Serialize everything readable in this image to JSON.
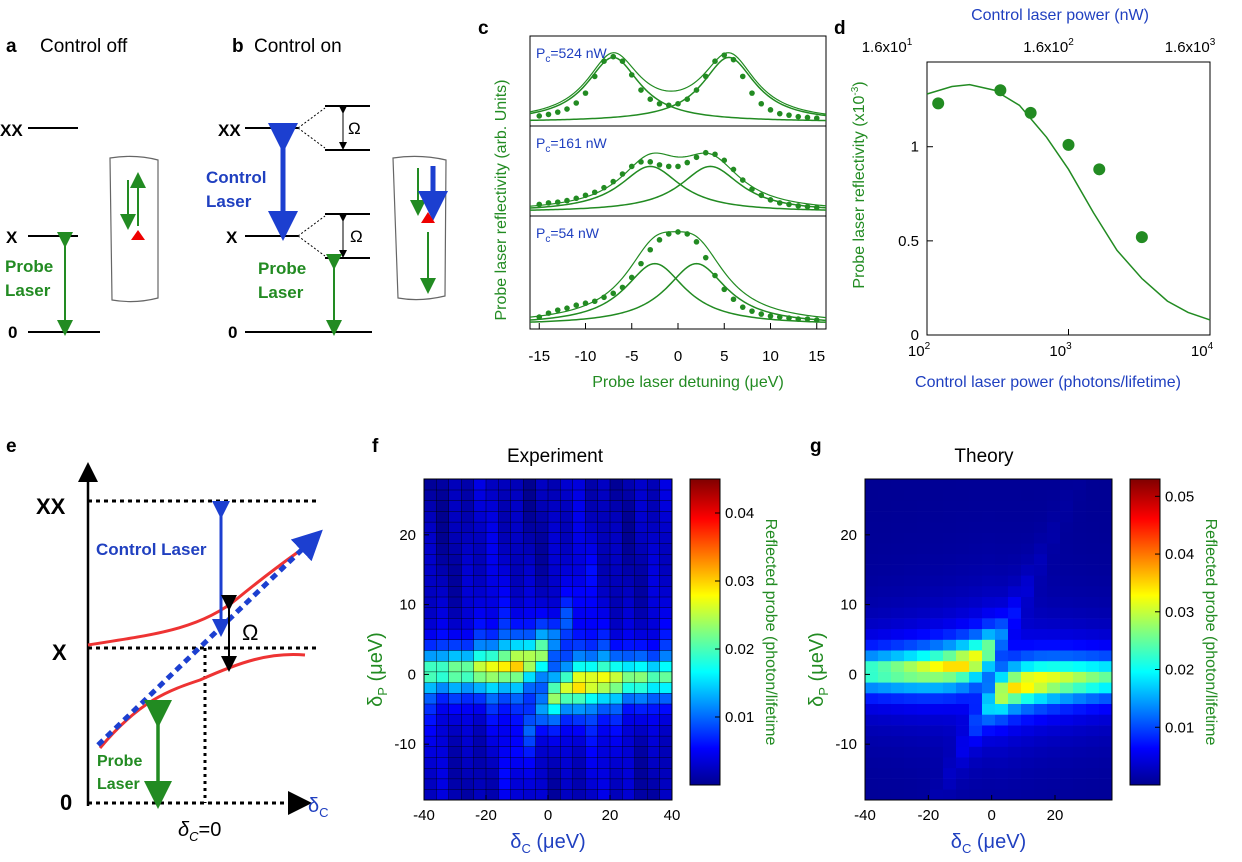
{
  "panels": {
    "a": {
      "letter": "a",
      "title": "Control off",
      "levels": [
        "XX",
        "X",
        "0"
      ],
      "probe": [
        "Probe",
        "Laser"
      ]
    },
    "b": {
      "letter": "b",
      "title": "Control on",
      "levels": [
        "XX",
        "X",
        "0"
      ],
      "control": [
        "Control",
        "Laser"
      ],
      "probe": [
        "Probe",
        "Laser"
      ],
      "omega": "Ω"
    },
    "e": {
      "letter": "e",
      "levels": [
        "XX",
        "X",
        "0"
      ],
      "control": "Control Laser",
      "probe": [
        "Probe",
        "Laser"
      ],
      "omega": "Ω",
      "xaxis": "δ",
      "xsub": "C",
      "dc0": "δ",
      "dc0sub": "C",
      "dc0tail": "=0"
    },
    "f": {
      "letter": "f",
      "title": "Experiment"
    },
    "g": {
      "letter": "g",
      "title": "Theory"
    }
  },
  "chart_data": [
    {
      "id": "c",
      "type": "line",
      "letter": "c",
      "xlabel": "Probe laser detuning (μeV)",
      "ylabel": "Probe laser reflectivity (arb. Units)",
      "xlim": [
        -16,
        16
      ],
      "xticks": [
        "-15",
        "-10",
        "-5",
        "0",
        "5",
        "10",
        "15"
      ],
      "subplots": [
        {
          "label_main": "P",
          "label_sub": "c",
          "label_rest": "=524 nW",
          "peaks": [
            -7,
            5.5
          ],
          "amp": 0.85,
          "gamma": 3.5,
          "points": {
            "x": [
              -15,
              -14,
              -13,
              -12,
              -11,
              -10,
              -9,
              -8,
              -7,
              -6,
              -5,
              -4,
              -3,
              -2,
              -1,
              0,
              1,
              2,
              3,
              4,
              5,
              6,
              7,
              8,
              9,
              10,
              11,
              12,
              13,
              14,
              15
            ],
            "y": [
              0.08,
              0.1,
              0.13,
              0.17,
              0.25,
              0.38,
              0.6,
              0.8,
              0.86,
              0.8,
              0.62,
              0.42,
              0.3,
              0.24,
              0.22,
              0.24,
              0.3,
              0.42,
              0.6,
              0.8,
              0.88,
              0.82,
              0.6,
              0.38,
              0.24,
              0.16,
              0.11,
              0.09,
              0.07,
              0.06,
              0.05
            ]
          }
        },
        {
          "label_main": "P",
          "label_sub": "c",
          "label_rest": "=161 nW",
          "peaks": [
            -3,
            3.5
          ],
          "amp": 0.6,
          "gamma": 4,
          "points": {
            "x": [
              -15,
              -14,
              -13,
              -12,
              -11,
              -10,
              -9,
              -8,
              -7,
              -6,
              -5,
              -4,
              -3,
              -2,
              -1,
              0,
              1,
              2,
              3,
              4,
              5,
              6,
              7,
              8,
              9,
              10,
              11,
              12,
              13,
              14,
              15
            ],
            "y": [
              0.1,
              0.12,
              0.13,
              0.15,
              0.18,
              0.22,
              0.26,
              0.32,
              0.4,
              0.5,
              0.6,
              0.66,
              0.66,
              0.62,
              0.6,
              0.6,
              0.65,
              0.72,
              0.78,
              0.76,
              0.68,
              0.56,
              0.42,
              0.3,
              0.22,
              0.16,
              0.12,
              0.1,
              0.08,
              0.07,
              0.06
            ]
          }
        },
        {
          "label_main": "P",
          "label_sub": "c",
          "label_rest": "=54 nW",
          "peaks": [
            -2.5,
            2
          ],
          "amp": 0.62,
          "gamma": 4,
          "points": {
            "x": [
              -15,
              -14,
              -13,
              -12,
              -11,
              -10,
              -9,
              -8,
              -7,
              -6,
              -5,
              -4,
              -3,
              -2,
              -1,
              0,
              1,
              2,
              3,
              4,
              5,
              6,
              7,
              8,
              9,
              10,
              11,
              12,
              13,
              14,
              15
            ],
            "y": [
              0.08,
              0.12,
              0.15,
              0.17,
              0.2,
              0.22,
              0.24,
              0.28,
              0.32,
              0.38,
              0.48,
              0.62,
              0.76,
              0.86,
              0.92,
              0.94,
              0.92,
              0.84,
              0.68,
              0.5,
              0.36,
              0.26,
              0.18,
              0.14,
              0.11,
              0.09,
              0.08,
              0.07,
              0.06,
              0.06,
              0.05
            ]
          }
        }
      ]
    },
    {
      "id": "d",
      "type": "scatter",
      "letter": "d",
      "xlabel": "Control laser power (photons/lifetime)",
      "xlabel_top": "Control laser power (nW)",
      "ylabel": "Probe laser reflectivity (x10",
      "ylabel_sup": "-3",
      "ylabel_tail": ")",
      "xscale": "log",
      "xlim": [
        100,
        10000
      ],
      "ylim": [
        0,
        1.45
      ],
      "xticks": [
        {
          "base": "10",
          "exp": "2"
        },
        {
          "base": "10",
          "exp": "3"
        },
        {
          "base": "10",
          "exp": "4"
        }
      ],
      "xticks_top": [
        {
          "base": "1.6x10",
          "exp": "1"
        },
        {
          "base": "1.6x10",
          "exp": "2"
        },
        {
          "base": "1.6x10",
          "exp": "3"
        }
      ],
      "yticks": [
        "0",
        "0.5",
        "1"
      ],
      "points": {
        "x": [
          120,
          330,
          540,
          1000,
          1650,
          3300
        ],
        "y": [
          1.23,
          1.3,
          1.18,
          1.01,
          0.88,
          0.52
        ]
      },
      "curve": {
        "x": [
          100,
          150,
          200,
          300,
          450,
          700,
          1000,
          1500,
          2200,
          3300,
          5000,
          7000,
          10000
        ],
        "y": [
          1.28,
          1.32,
          1.33,
          1.3,
          1.22,
          1.05,
          0.88,
          0.65,
          0.45,
          0.3,
          0.18,
          0.12,
          0.08
        ]
      }
    },
    {
      "id": "f",
      "type": "heatmap",
      "xlabel_main": "δ",
      "xlabel_sub": "C",
      "xlabel_unit": " (μeV)",
      "ylabel_main": "δ",
      "ylabel_sub": "P",
      "ylabel_unit": " (μeV)",
      "xlim": [
        -40,
        40
      ],
      "ylim": [
        -18,
        28
      ],
      "xticks": [
        "-40",
        "-20",
        "0",
        "20",
        "40"
      ],
      "yticks": [
        "-10",
        "0",
        "10",
        "20"
      ],
      "colorbar_label": "Reflected probe (photon/lifetime",
      "colorbar_ticks": [
        "0.01",
        "0.02",
        "0.03",
        "0.04"
      ],
      "vmax": 0.045,
      "grid": true
    },
    {
      "id": "g",
      "type": "heatmap",
      "xlabel_main": "δ",
      "xlabel_sub": "C",
      "xlabel_unit": " (μeV)",
      "ylabel_main": "δ",
      "ylabel_sub": "P",
      "ylabel_unit": " (μeV)",
      "xlim": [
        -40,
        38
      ],
      "ylim": [
        -18,
        28
      ],
      "xticks": [
        "-40",
        "-20",
        "0",
        "20"
      ],
      "yticks": [
        "-10",
        "0",
        "10",
        "20"
      ],
      "colorbar_label": "Reflected probe (photon/lifetime",
      "colorbar_ticks": [
        "0.01",
        "0.02",
        "0.03",
        "0.04",
        "0.05"
      ],
      "vmax": 0.053,
      "grid": true
    }
  ],
  "colors": {
    "green": "#228b22",
    "blue": "#2040c0",
    "red": "#ee3333",
    "arrowBlue": "#1c3fd0"
  }
}
